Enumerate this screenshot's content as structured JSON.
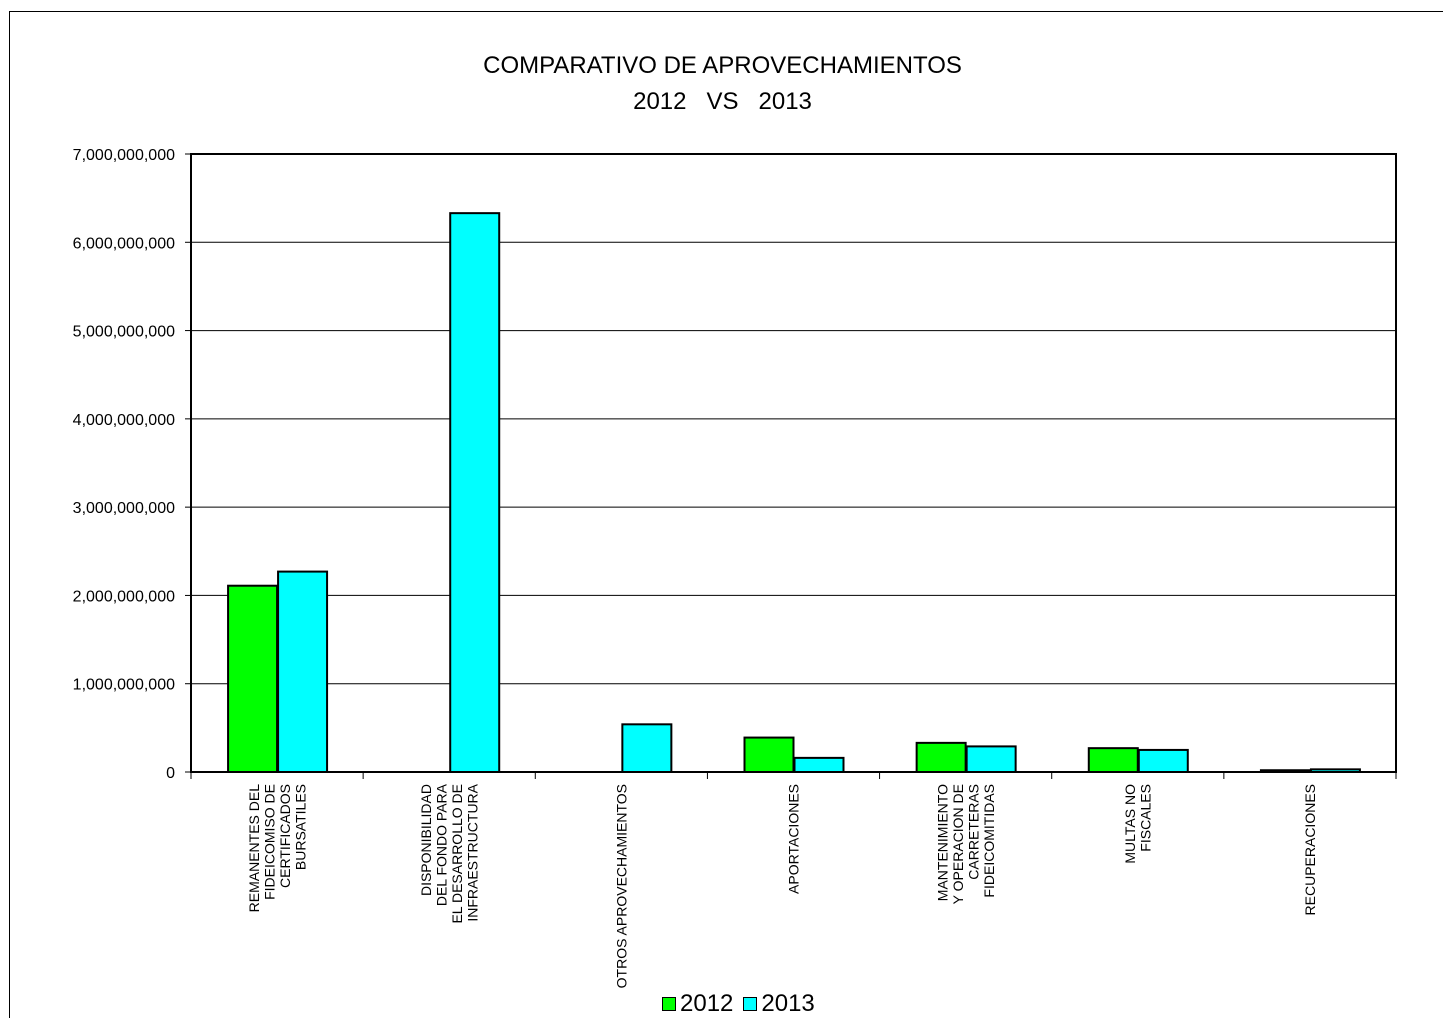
{
  "chart_data": {
    "type": "bar",
    "title": "COMPARATIVO DE APROVECHAMIENTOS",
    "subtitle": "2012   VS   2013",
    "xlabel": "",
    "ylabel": "",
    "ylim": [
      0,
      7000000000
    ],
    "yticks": [
      0,
      1000000000,
      2000000000,
      3000000000,
      4000000000,
      5000000000,
      6000000000,
      7000000000
    ],
    "ytick_labels": [
      "0",
      "1,000,000,000",
      "2,000,000,000",
      "3,000,000,000",
      "4,000,000,000",
      "5,000,000,000",
      "6,000,000,000",
      "7,000,000,000"
    ],
    "grid": true,
    "legend_position": "bottom",
    "categories": [
      [
        "REMANENTES DEL",
        "FIDEICOMISO DE",
        "CERTIFICADOS",
        "BURSATILES"
      ],
      [
        "DISPONIBILIDAD",
        "DEL FONDO PARA",
        "EL DESARROLLO DE",
        "INFRAESTRUCTURA"
      ],
      [
        "OTROS APROVECHAMIENTOS"
      ],
      [
        "APORTACIONES"
      ],
      [
        "MANTENIMIENTO",
        "Y OPERACION DE",
        "CARRETERAS",
        "FIDEICOMITIDAS"
      ],
      [
        "MULTAS NO",
        "FISCALES"
      ],
      [
        "RECUPERACIONES"
      ]
    ],
    "series": [
      {
        "name": "2012",
        "color": "#00ff00",
        "values": [
          2110000000,
          0,
          0,
          390000000,
          330000000,
          270000000,
          20000000
        ]
      },
      {
        "name": "2013",
        "color": "#00ffff",
        "values": [
          2270000000,
          6330000000,
          540000000,
          160000000,
          290000000,
          250000000,
          30000000
        ]
      }
    ]
  }
}
